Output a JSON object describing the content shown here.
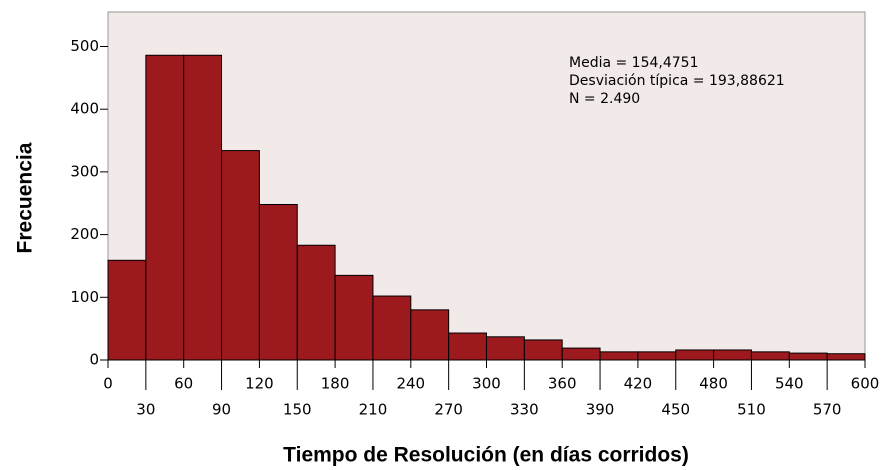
{
  "chart_data": {
    "type": "histogram",
    "xlabel": "Tiempo de Resolución (en días corridos)",
    "ylabel": "Frecuencia",
    "annotations": [
      "Media = 154,4751",
      "Desviación típica = 193,88621",
      "N = 2.490"
    ],
    "bins": [
      0,
      30,
      60,
      90,
      120,
      150,
      180,
      210,
      240,
      270,
      300,
      330,
      360,
      390,
      420,
      450,
      480,
      510,
      540,
      570,
      600
    ],
    "values": [
      159,
      486,
      486,
      334,
      248,
      183,
      135,
      102,
      80,
      43,
      37,
      32,
      19,
      13,
      13,
      16,
      16,
      13,
      11,
      10
    ],
    "color": "#9c1a1e",
    "xlim": [
      0,
      600
    ],
    "xticks": [
      0,
      30,
      60,
      90,
      120,
      150,
      180,
      210,
      240,
      270,
      300,
      330,
      360,
      390,
      420,
      450,
      480,
      510,
      540,
      570,
      600
    ],
    "ylim": [
      0,
      555
    ],
    "yticks": [
      0,
      100,
      200,
      300,
      400,
      500
    ]
  }
}
